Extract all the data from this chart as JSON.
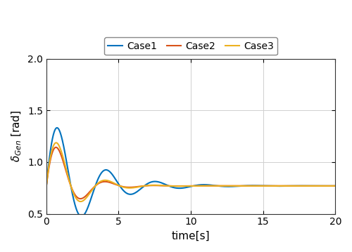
{
  "xlabel": "time[s]",
  "ylabel": "delta_Gen [rad]",
  "xlim": [
    0,
    20
  ],
  "ylim": [
    0.5,
    2.0
  ],
  "yticks": [
    0.5,
    1.0,
    1.5,
    2.0
  ],
  "xticks": [
    0,
    5,
    10,
    15,
    20
  ],
  "legend": [
    "Case1",
    "Case2",
    "Case3"
  ],
  "colors": [
    "#0072BD",
    "#D95319",
    "#EDB120"
  ],
  "linewidths": [
    1.5,
    1.5,
    1.5
  ],
  "steady": 0.77,
  "case1": {
    "amp1": 0.76,
    "decay1": 0.38,
    "freq1": 0.295,
    "phase1": 0.0
  },
  "case2": {
    "amp1": 0.61,
    "decay1": 0.65,
    "freq1": 0.295,
    "phase1": 0.0
  },
  "case3": {
    "amp1": 0.66,
    "decay1": 0.6,
    "freq1": 0.295,
    "phase1": 0.0
  }
}
